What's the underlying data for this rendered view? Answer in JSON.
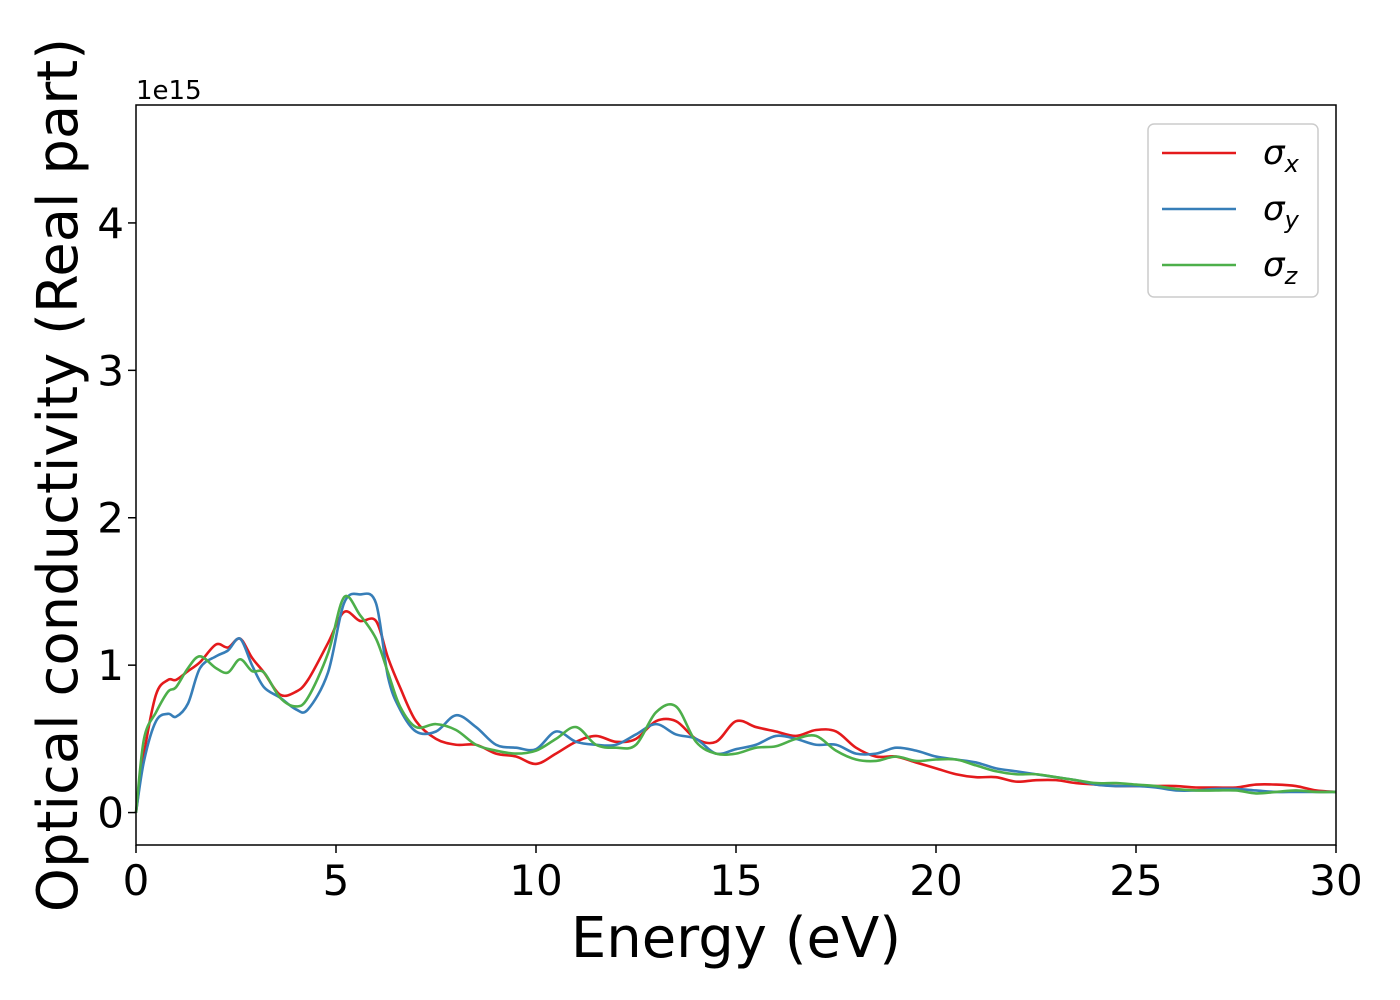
{
  "chart_data": {
    "type": "line",
    "title": "",
    "xlabel": "Energy (eV)",
    "ylabel": "Optical conductivity (Real part)",
    "y_offset_label": "1e15",
    "xlim": [
      0,
      30
    ],
    "ylim": [
      -0.22,
      4.8
    ],
    "x_ticks": [
      0,
      5,
      10,
      15,
      20,
      25,
      30
    ],
    "y_ticks": [
      0,
      1,
      2,
      3,
      4
    ],
    "grid": false,
    "legend_position": "top-right",
    "colors": {
      "sigma_x": "#e41a1c",
      "sigma_y": "#377eb8",
      "sigma_z": "#4daf4a"
    },
    "series": [
      {
        "name": "σx",
        "legend_symbol": "σ",
        "legend_subscript": "x",
        "color": "#e41a1c",
        "x": [
          0,
          0.2,
          0.5,
          0.8,
          1,
          1.3,
          1.6,
          2,
          2.3,
          2.6,
          2.9,
          3.2,
          3.6,
          4,
          4.3,
          4.8,
          5.2,
          5.6,
          6,
          6.3,
          6.6,
          7,
          7.5,
          8,
          8.5,
          9,
          9.5,
          10,
          10.5,
          11,
          11.5,
          12,
          12.5,
          13,
          13.5,
          14,
          14.5,
          15,
          15.5,
          16,
          16.5,
          17,
          17.5,
          18,
          18.5,
          19,
          19.5,
          20,
          20.5,
          21,
          21.5,
          22,
          22.5,
          23,
          23.5,
          24,
          24.5,
          25,
          25.5,
          26,
          26.5,
          27,
          27.5,
          28,
          28.5,
          29,
          29.5,
          30
        ],
        "y": [
          0,
          0.4,
          0.8,
          0.9,
          0.9,
          0.96,
          1.02,
          1.14,
          1.12,
          1.18,
          1.05,
          0.95,
          0.8,
          0.82,
          0.9,
          1.15,
          1.36,
          1.3,
          1.3,
          1.05,
          0.85,
          0.62,
          0.5,
          0.46,
          0.46,
          0.4,
          0.38,
          0.33,
          0.4,
          0.48,
          0.52,
          0.48,
          0.5,
          0.62,
          0.62,
          0.5,
          0.48,
          0.62,
          0.58,
          0.55,
          0.52,
          0.56,
          0.55,
          0.44,
          0.38,
          0.38,
          0.34,
          0.3,
          0.26,
          0.24,
          0.24,
          0.21,
          0.22,
          0.22,
          0.2,
          0.19,
          0.18,
          0.18,
          0.18,
          0.18,
          0.17,
          0.17,
          0.17,
          0.19,
          0.19,
          0.18,
          0.15,
          0.14
        ]
      },
      {
        "name": "σy",
        "legend_symbol": "σ",
        "legend_subscript": "y",
        "color": "#377eb8",
        "x": [
          0,
          0.2,
          0.5,
          0.8,
          1,
          1.3,
          1.6,
          2,
          2.3,
          2.6,
          2.9,
          3.2,
          3.6,
          4,
          4.3,
          4.8,
          5.2,
          5.6,
          6,
          6.3,
          6.6,
          7,
          7.5,
          8,
          8.5,
          9,
          9.5,
          10,
          10.5,
          11,
          11.5,
          12,
          12.5,
          13,
          13.5,
          14,
          14.5,
          15,
          15.5,
          16,
          16.5,
          17,
          17.5,
          18,
          18.5,
          19,
          19.5,
          20,
          20.5,
          21,
          21.5,
          22,
          22.5,
          23,
          23.5,
          24,
          24.5,
          25,
          25.5,
          26,
          26.5,
          27,
          27.5,
          28,
          28.5,
          29,
          29.5,
          30
        ],
        "y": [
          0,
          0.35,
          0.62,
          0.67,
          0.65,
          0.74,
          0.98,
          1.06,
          1.1,
          1.18,
          1.0,
          0.85,
          0.78,
          0.7,
          0.7,
          0.95,
          1.42,
          1.48,
          1.42,
          0.92,
          0.7,
          0.55,
          0.55,
          0.66,
          0.58,
          0.46,
          0.44,
          0.43,
          0.55,
          0.48,
          0.46,
          0.46,
          0.53,
          0.6,
          0.53,
          0.5,
          0.4,
          0.43,
          0.46,
          0.52,
          0.5,
          0.46,
          0.46,
          0.4,
          0.4,
          0.44,
          0.42,
          0.38,
          0.36,
          0.34,
          0.3,
          0.28,
          0.26,
          0.24,
          0.22,
          0.19,
          0.18,
          0.18,
          0.17,
          0.15,
          0.15,
          0.16,
          0.16,
          0.15,
          0.14,
          0.14,
          0.14,
          0.14
        ]
      },
      {
        "name": "σz",
        "legend_symbol": "σ",
        "legend_subscript": "z",
        "color": "#4daf4a",
        "x": [
          0,
          0.2,
          0.5,
          0.8,
          1,
          1.3,
          1.6,
          2,
          2.3,
          2.6,
          2.9,
          3.2,
          3.6,
          4,
          4.3,
          4.8,
          5.2,
          5.6,
          6,
          6.3,
          6.6,
          7,
          7.5,
          8,
          8.5,
          9,
          9.5,
          10,
          10.5,
          11,
          11.5,
          12,
          12.5,
          13,
          13.5,
          14,
          14.5,
          15,
          15.5,
          16,
          16.5,
          17,
          17.5,
          18,
          18.5,
          19,
          19.5,
          20,
          20.5,
          21,
          21.5,
          22,
          22.5,
          23,
          23.5,
          24,
          24.5,
          25,
          25.5,
          26,
          26.5,
          27,
          27.5,
          28,
          28.5,
          29,
          29.5,
          30
        ],
        "y": [
          0,
          0.5,
          0.68,
          0.82,
          0.85,
          0.98,
          1.06,
          0.98,
          0.95,
          1.04,
          0.96,
          0.95,
          0.78,
          0.72,
          0.78,
          1.08,
          1.46,
          1.34,
          1.18,
          0.95,
          0.72,
          0.58,
          0.6,
          0.56,
          0.46,
          0.42,
          0.4,
          0.42,
          0.5,
          0.58,
          0.46,
          0.44,
          0.46,
          0.68,
          0.72,
          0.48,
          0.4,
          0.4,
          0.44,
          0.45,
          0.5,
          0.52,
          0.42,
          0.36,
          0.35,
          0.38,
          0.35,
          0.36,
          0.36,
          0.32,
          0.28,
          0.26,
          0.26,
          0.24,
          0.22,
          0.2,
          0.2,
          0.19,
          0.18,
          0.16,
          0.15,
          0.15,
          0.15,
          0.13,
          0.14,
          0.15,
          0.14,
          0.14
        ]
      }
    ]
  }
}
